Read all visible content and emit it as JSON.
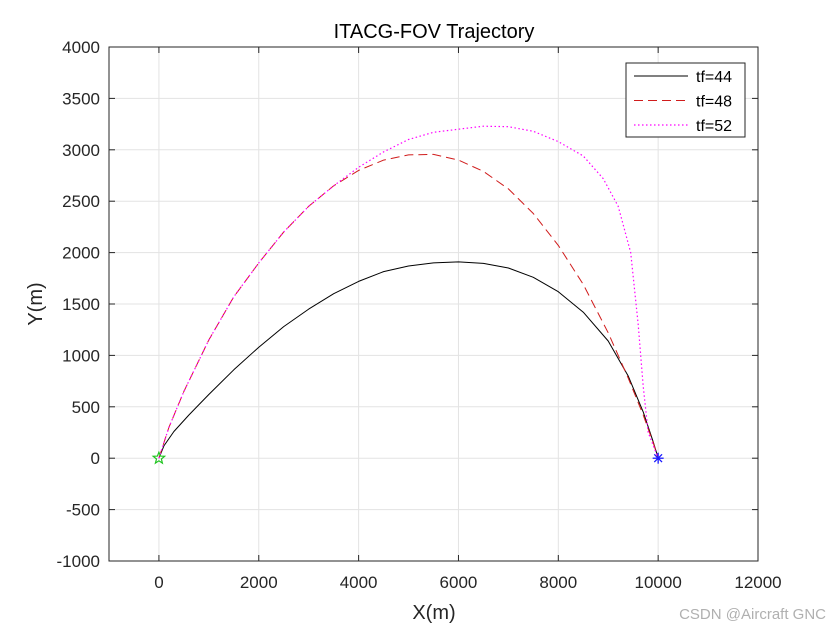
{
  "chart_data": {
    "type": "line",
    "title": "ITACG-FOV Trajectory",
    "xlabel": "X(m)",
    "ylabel": "Y(m)",
    "xlim": [
      -1000,
      12000
    ],
    "ylim": [
      -1000,
      4000
    ],
    "xticks": [
      0,
      2000,
      4000,
      6000,
      8000,
      10000,
      12000
    ],
    "yticks": [
      -1000,
      -500,
      0,
      500,
      1000,
      1500,
      2000,
      2500,
      3000,
      3500,
      4000
    ],
    "grid": true,
    "legend_position": "top-right",
    "series": [
      {
        "name": "tf=44",
        "color": "#000000",
        "style": "solid",
        "points": [
          [
            0,
            0
          ],
          [
            100,
            120
          ],
          [
            300,
            260
          ],
          [
            600,
            420
          ],
          [
            1000,
            620
          ],
          [
            1500,
            860
          ],
          [
            2000,
            1080
          ],
          [
            2500,
            1280
          ],
          [
            3000,
            1450
          ],
          [
            3500,
            1600
          ],
          [
            4000,
            1720
          ],
          [
            4500,
            1815
          ],
          [
            5000,
            1870
          ],
          [
            5500,
            1900
          ],
          [
            6000,
            1910
          ],
          [
            6500,
            1895
          ],
          [
            7000,
            1850
          ],
          [
            7500,
            1760
          ],
          [
            8000,
            1620
          ],
          [
            8500,
            1420
          ],
          [
            9000,
            1140
          ],
          [
            9400,
            800
          ],
          [
            9700,
            450
          ],
          [
            9900,
            160
          ],
          [
            10000,
            0
          ]
        ]
      },
      {
        "name": "tf=48",
        "color": "#d01c1c",
        "style": "dashed",
        "points": [
          [
            0,
            0
          ],
          [
            200,
            300
          ],
          [
            500,
            650
          ],
          [
            1000,
            1150
          ],
          [
            1500,
            1570
          ],
          [
            2000,
            1900
          ],
          [
            2500,
            2200
          ],
          [
            3000,
            2450
          ],
          [
            3500,
            2650
          ],
          [
            4000,
            2800
          ],
          [
            4500,
            2900
          ],
          [
            5000,
            2950
          ],
          [
            5500,
            2955
          ],
          [
            6000,
            2900
          ],
          [
            6500,
            2790
          ],
          [
            7000,
            2620
          ],
          [
            7500,
            2380
          ],
          [
            8000,
            2070
          ],
          [
            8500,
            1690
          ],
          [
            9000,
            1220
          ],
          [
            9400,
            780
          ],
          [
            9700,
            420
          ],
          [
            9900,
            150
          ],
          [
            10000,
            0
          ]
        ]
      },
      {
        "name": "tf=52",
        "color": "#ff00ff",
        "style": "dotted",
        "points": [
          [
            0,
            0
          ],
          [
            200,
            300
          ],
          [
            500,
            650
          ],
          [
            1000,
            1150
          ],
          [
            1500,
            1570
          ],
          [
            2000,
            1900
          ],
          [
            2500,
            2200
          ],
          [
            3000,
            2450
          ],
          [
            3500,
            2650
          ],
          [
            4000,
            2830
          ],
          [
            4500,
            2980
          ],
          [
            5000,
            3100
          ],
          [
            5500,
            3170
          ],
          [
            6000,
            3200
          ],
          [
            6500,
            3230
          ],
          [
            7000,
            3225
          ],
          [
            7500,
            3180
          ],
          [
            8000,
            3080
          ],
          [
            8500,
            2940
          ],
          [
            8900,
            2720
          ],
          [
            9200,
            2450
          ],
          [
            9450,
            2000
          ],
          [
            9600,
            1300
          ],
          [
            9700,
            700
          ],
          [
            9800,
            250
          ],
          [
            10000,
            0
          ]
        ]
      }
    ],
    "markers": [
      {
        "name": "start",
        "x": 0,
        "y": 0,
        "symbol": "star",
        "color": "#1ec41e"
      },
      {
        "name": "target",
        "x": 10000,
        "y": 0,
        "symbol": "asterisk",
        "color": "#1a1aff"
      }
    ]
  },
  "watermark": "CSDN @Aircraft GNC"
}
